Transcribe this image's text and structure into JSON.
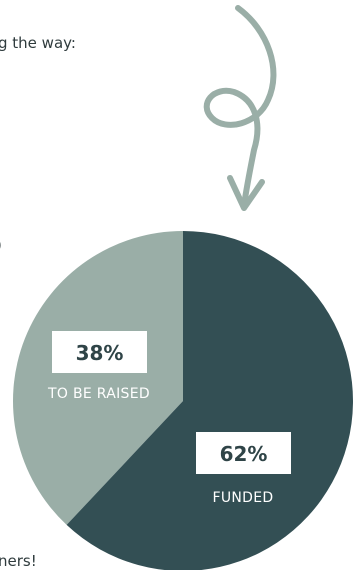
{
  "text_fragments": {
    "top": "g the way:",
    "mid": ")",
    "bottom": "ners!"
  },
  "colors": {
    "funded": "#334f54",
    "to_be_raised": "#9aaea7",
    "arrow": "#9aaea7",
    "label_box": "#ffffff",
    "label_text_dark": "#2f4447",
    "caption_text": "#ffffff"
  },
  "icons": {
    "arrow": "curly-down-arrow-icon"
  },
  "chart_data": {
    "type": "pie",
    "slices": [
      {
        "label": "TO BE RAISED",
        "value": 38,
        "display": "38%"
      },
      {
        "label": "FUNDED",
        "value": 62,
        "display": "62%"
      }
    ]
  }
}
